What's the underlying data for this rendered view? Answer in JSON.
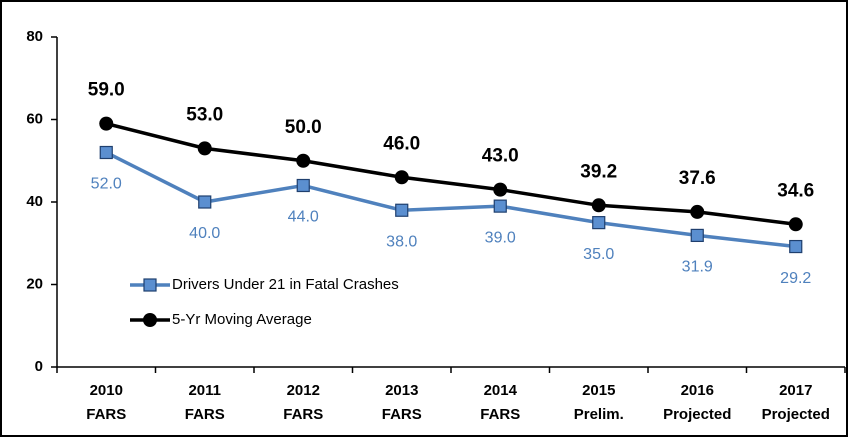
{
  "chart_data": {
    "type": "line",
    "categories": [
      [
        "2010",
        "FARS"
      ],
      [
        "2011",
        "FARS"
      ],
      [
        "2012",
        "FARS"
      ],
      [
        "2013",
        "FARS"
      ],
      [
        "2014",
        "FARS"
      ],
      [
        "2015",
        "Prelim."
      ],
      [
        "2016",
        "Projected"
      ],
      [
        "2017",
        "Projected"
      ]
    ],
    "series": [
      {
        "name": "Drivers Under 21 in Fatal Crashes",
        "color": "#4f81bd",
        "marker": "square",
        "values": [
          52,
          40,
          44,
          38,
          39,
          35,
          31.9,
          29.2
        ],
        "value_labels": [
          "52.0",
          "40.0",
          "44.0",
          "38.0",
          "39.0",
          "35.0",
          "31.9",
          "29.2"
        ]
      },
      {
        "name": "5-Yr Moving Average",
        "color": "#000000",
        "marker": "circle",
        "values": [
          59,
          53,
          50,
          46,
          43,
          39.2,
          37.6,
          34.6
        ],
        "value_labels": [
          "59.0",
          "53.0",
          "50.0",
          "46.0",
          "43.0",
          "39.2",
          "37.6",
          "34.6"
        ]
      }
    ],
    "ylim": [
      0,
      80
    ],
    "yticks": [
      0,
      20,
      40,
      60,
      80
    ],
    "grid": false,
    "legend": "lower left"
  }
}
